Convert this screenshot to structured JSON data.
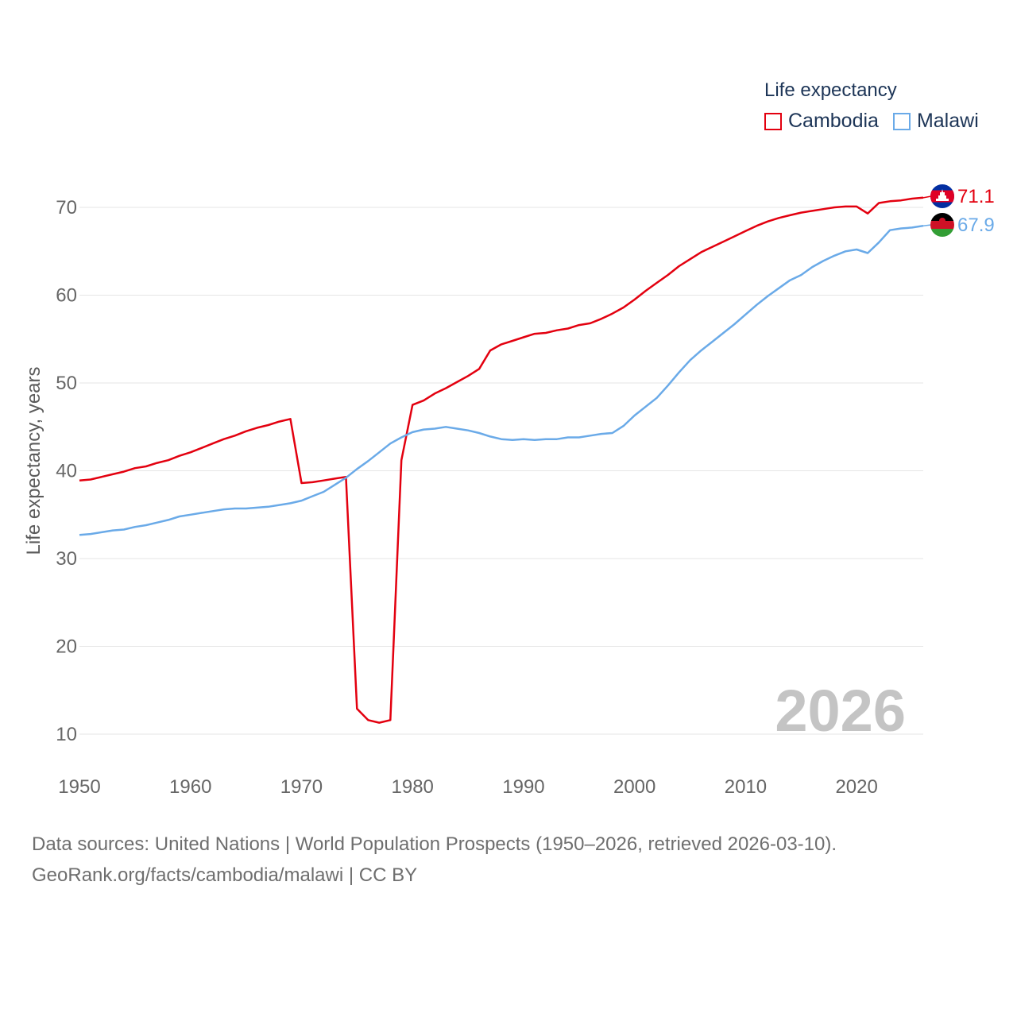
{
  "legend": {
    "title": "Life expectancy",
    "items": [
      {
        "label": "Cambodia",
        "color": "#e3000f"
      },
      {
        "label": "Malawi",
        "color": "#6aaae8"
      }
    ]
  },
  "year_label": "2026",
  "footer": {
    "line1": "Data sources: United Nations | World Population Prospects (1950–2026, retrieved 2026-03-10).",
    "line2": "GeoRank.org/facts/cambodia/malawi | CC BY"
  },
  "chart_data": {
    "type": "line",
    "title": "Life expectancy",
    "xlabel": "",
    "ylabel": "Life expectancy, years",
    "xlim": [
      1950,
      2026
    ],
    "ylim": [
      9,
      73
    ],
    "xticks": [
      1950,
      1960,
      1970,
      1980,
      1990,
      2000,
      2010,
      2020
    ],
    "yticks": [
      10,
      20,
      30,
      40,
      50,
      60,
      70
    ],
    "grid": true,
    "x": [
      1950,
      1951,
      1952,
      1953,
      1954,
      1955,
      1956,
      1957,
      1958,
      1959,
      1960,
      1961,
      1962,
      1963,
      1964,
      1965,
      1966,
      1967,
      1968,
      1969,
      1970,
      1971,
      1972,
      1973,
      1974,
      1975,
      1976,
      1977,
      1978,
      1979,
      1980,
      1981,
      1982,
      1983,
      1984,
      1985,
      1986,
      1987,
      1988,
      1989,
      1990,
      1991,
      1992,
      1993,
      1994,
      1995,
      1996,
      1997,
      1998,
      1999,
      2000,
      2001,
      2002,
      2003,
      2004,
      2005,
      2006,
      2007,
      2008,
      2009,
      2010,
      2011,
      2012,
      2013,
      2014,
      2015,
      2016,
      2017,
      2018,
      2019,
      2020,
      2021,
      2022,
      2023,
      2024,
      2025,
      2026
    ],
    "series": [
      {
        "name": "Cambodia",
        "color": "#e3000f",
        "end_label": "71.1",
        "values": [
          38.9,
          39.0,
          39.3,
          39.6,
          39.9,
          40.3,
          40.5,
          40.9,
          41.2,
          41.7,
          42.1,
          42.6,
          43.1,
          43.6,
          44.0,
          44.5,
          44.9,
          45.2,
          45.6,
          45.9,
          38.6,
          38.7,
          38.9,
          39.1,
          39.3,
          12.9,
          11.6,
          11.3,
          11.6,
          41.2,
          47.5,
          48.0,
          48.8,
          49.4,
          50.1,
          50.8,
          51.6,
          53.7,
          54.4,
          54.8,
          55.2,
          55.6,
          55.7,
          56.0,
          56.2,
          56.6,
          56.8,
          57.3,
          57.9,
          58.6,
          59.5,
          60.5,
          61.4,
          62.3,
          63.3,
          64.1,
          64.9,
          65.5,
          66.1,
          66.7,
          67.3,
          67.9,
          68.4,
          68.8,
          69.1,
          69.4,
          69.6,
          69.8,
          70.0,
          70.1,
          70.1,
          69.3,
          70.5,
          70.7,
          70.8,
          71.0,
          71.1
        ]
      },
      {
        "name": "Malawi",
        "color": "#6aaae8",
        "end_label": "67.9",
        "values": [
          32.7,
          32.8,
          33.0,
          33.2,
          33.3,
          33.6,
          33.8,
          34.1,
          34.4,
          34.8,
          35.0,
          35.2,
          35.4,
          35.6,
          35.7,
          35.7,
          35.8,
          35.9,
          36.1,
          36.3,
          36.6,
          37.1,
          37.6,
          38.4,
          39.2,
          40.2,
          41.1,
          42.1,
          43.1,
          43.8,
          44.4,
          44.7,
          44.8,
          45.0,
          44.8,
          44.6,
          44.3,
          43.9,
          43.6,
          43.5,
          43.6,
          43.5,
          43.6,
          43.6,
          43.8,
          43.8,
          44.0,
          44.2,
          44.3,
          45.1,
          46.3,
          47.3,
          48.3,
          49.7,
          51.2,
          52.6,
          53.7,
          54.7,
          55.7,
          56.7,
          57.8,
          58.9,
          59.9,
          60.8,
          61.7,
          62.3,
          63.2,
          63.9,
          64.5,
          65.0,
          65.2,
          64.8,
          66.0,
          67.4,
          67.6,
          67.7,
          67.9
        ]
      }
    ]
  }
}
